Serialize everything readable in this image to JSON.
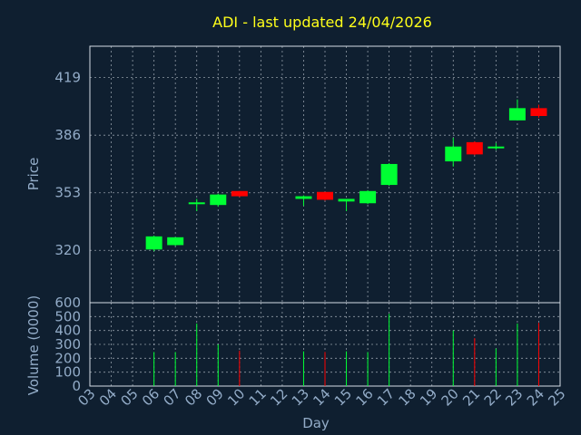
{
  "chart_data": [
    {
      "type": "candlestick",
      "title": "ADI - last updated 24/04/2026",
      "ylabel": "Price",
      "xlabel": "Day",
      "x_ticks": [
        "03",
        "04",
        "05",
        "06",
        "07",
        "08",
        "09",
        "10",
        "11",
        "12",
        "13",
        "14",
        "15",
        "16",
        "17",
        "18",
        "19",
        "20",
        "21",
        "22",
        "23",
        "24",
        "25"
      ],
      "y_ticks": [
        320,
        353,
        386,
        419
      ],
      "ylim": [
        290,
        437
      ],
      "xlim": [
        3,
        25
      ],
      "grid": true,
      "colors": {
        "up": "#00ff33",
        "down": "#ff0000",
        "background": "#0f1f30",
        "title": "#ffff1a",
        "text": "#93acc8",
        "grid": "#d6dde6"
      },
      "candles": [
        {
          "day": 6,
          "open": 320.5,
          "high": 328.5,
          "low": 319.5,
          "close": 328.0
        },
        {
          "day": 7,
          "open": 323.0,
          "high": 327.5,
          "low": 322.5,
          "close": 327.5
        },
        {
          "day": 8,
          "open": 347.0,
          "high": 349.5,
          "low": 342.5,
          "close": 347.5
        },
        {
          "day": 9,
          "open": 346.0,
          "high": 352.5,
          "low": 345.0,
          "close": 352.0
        },
        {
          "day": 10,
          "open": 354.0,
          "high": 354.0,
          "low": 350.5,
          "close": 351.0
        },
        {
          "day": 13,
          "open": 349.5,
          "high": 351.5,
          "low": 345.5,
          "close": 351.0
        },
        {
          "day": 14,
          "open": 353.5,
          "high": 353.5,
          "low": 348.5,
          "close": 349.0
        },
        {
          "day": 15,
          "open": 348.0,
          "high": 349.5,
          "low": 342.5,
          "close": 349.5
        },
        {
          "day": 16,
          "open": 347.0,
          "high": 354.5,
          "low": 346.5,
          "close": 354.0
        },
        {
          "day": 17,
          "open": 357.5,
          "high": 370.0,
          "low": 357.0,
          "close": 369.5
        },
        {
          "day": 20,
          "open": 371.0,
          "high": 384.5,
          "low": 368.0,
          "close": 379.5
        },
        {
          "day": 21,
          "open": 382.0,
          "high": 382.5,
          "low": 374.5,
          "close": 375.0
        },
        {
          "day": 22,
          "open": 378.5,
          "high": 381.5,
          "low": 377.5,
          "close": 379.5
        },
        {
          "day": 23,
          "open": 394.5,
          "high": 406.5,
          "low": 394.5,
          "close": 401.5
        },
        {
          "day": 24,
          "open": 401.5,
          "high": 403.5,
          "low": 396.0,
          "close": 397.0
        }
      ],
      "volume": {
        "ylabel": "Volume (0000)",
        "y_ticks": [
          0,
          100,
          200,
          300,
          400,
          500,
          600
        ],
        "ylim": [
          0,
          600
        ],
        "values": [
          {
            "day": 6,
            "value": 245,
            "direction": "up"
          },
          {
            "day": 7,
            "value": 245,
            "direction": "up"
          },
          {
            "day": 8,
            "value": 450,
            "direction": "up"
          },
          {
            "day": 9,
            "value": 300,
            "direction": "up"
          },
          {
            "day": 10,
            "value": 255,
            "direction": "down"
          },
          {
            "day": 13,
            "value": 250,
            "direction": "up"
          },
          {
            "day": 14,
            "value": 245,
            "direction": "down"
          },
          {
            "day": 15,
            "value": 250,
            "direction": "up"
          },
          {
            "day": 16,
            "value": 245,
            "direction": "up"
          },
          {
            "day": 17,
            "value": 520,
            "direction": "up"
          },
          {
            "day": 20,
            "value": 400,
            "direction": "up"
          },
          {
            "day": 21,
            "value": 345,
            "direction": "down"
          },
          {
            "day": 22,
            "value": 270,
            "direction": "up"
          },
          {
            "day": 23,
            "value": 450,
            "direction": "up"
          },
          {
            "day": 24,
            "value": 455,
            "direction": "down"
          }
        ]
      }
    }
  ]
}
